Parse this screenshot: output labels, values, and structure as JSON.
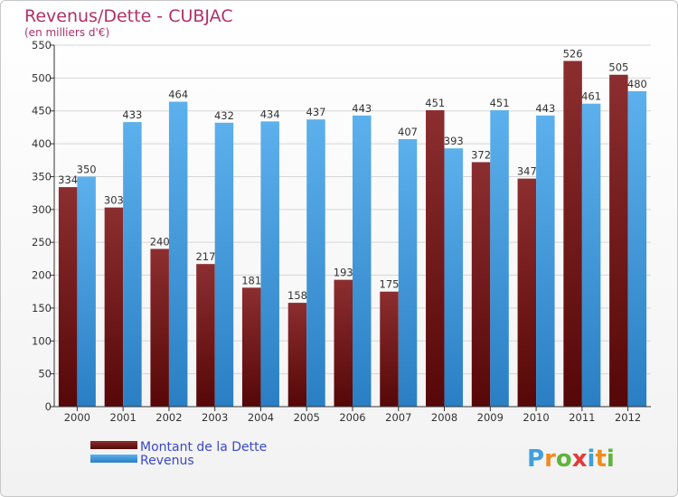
{
  "chart_data": {
    "type": "bar",
    "title": "Revenus/Dette - CUBJAC",
    "subtitle": "(en milliers d'€)",
    "categories": [
      "2000",
      "2001",
      "2002",
      "2003",
      "2004",
      "2005",
      "2006",
      "2007",
      "2008",
      "2009",
      "2010",
      "2011",
      "2012"
    ],
    "series": [
      {
        "name": "Montant de la Dette",
        "color": "#6e1010",
        "values": [
          334,
          303,
          240,
          217,
          181,
          158,
          193,
          175,
          451,
          372,
          347,
          526,
          505
        ]
      },
      {
        "name": "Revenus",
        "color": "#3f9ee0",
        "values": [
          350,
          433,
          464,
          432,
          434,
          437,
          443,
          407,
          393,
          451,
          443,
          461,
          480
        ]
      }
    ],
    "ylim": [
      0,
      550
    ],
    "ytick_step": 50,
    "grid": true,
    "legend_position": "bottom-left"
  },
  "logo": {
    "text": "Proxiti"
  }
}
